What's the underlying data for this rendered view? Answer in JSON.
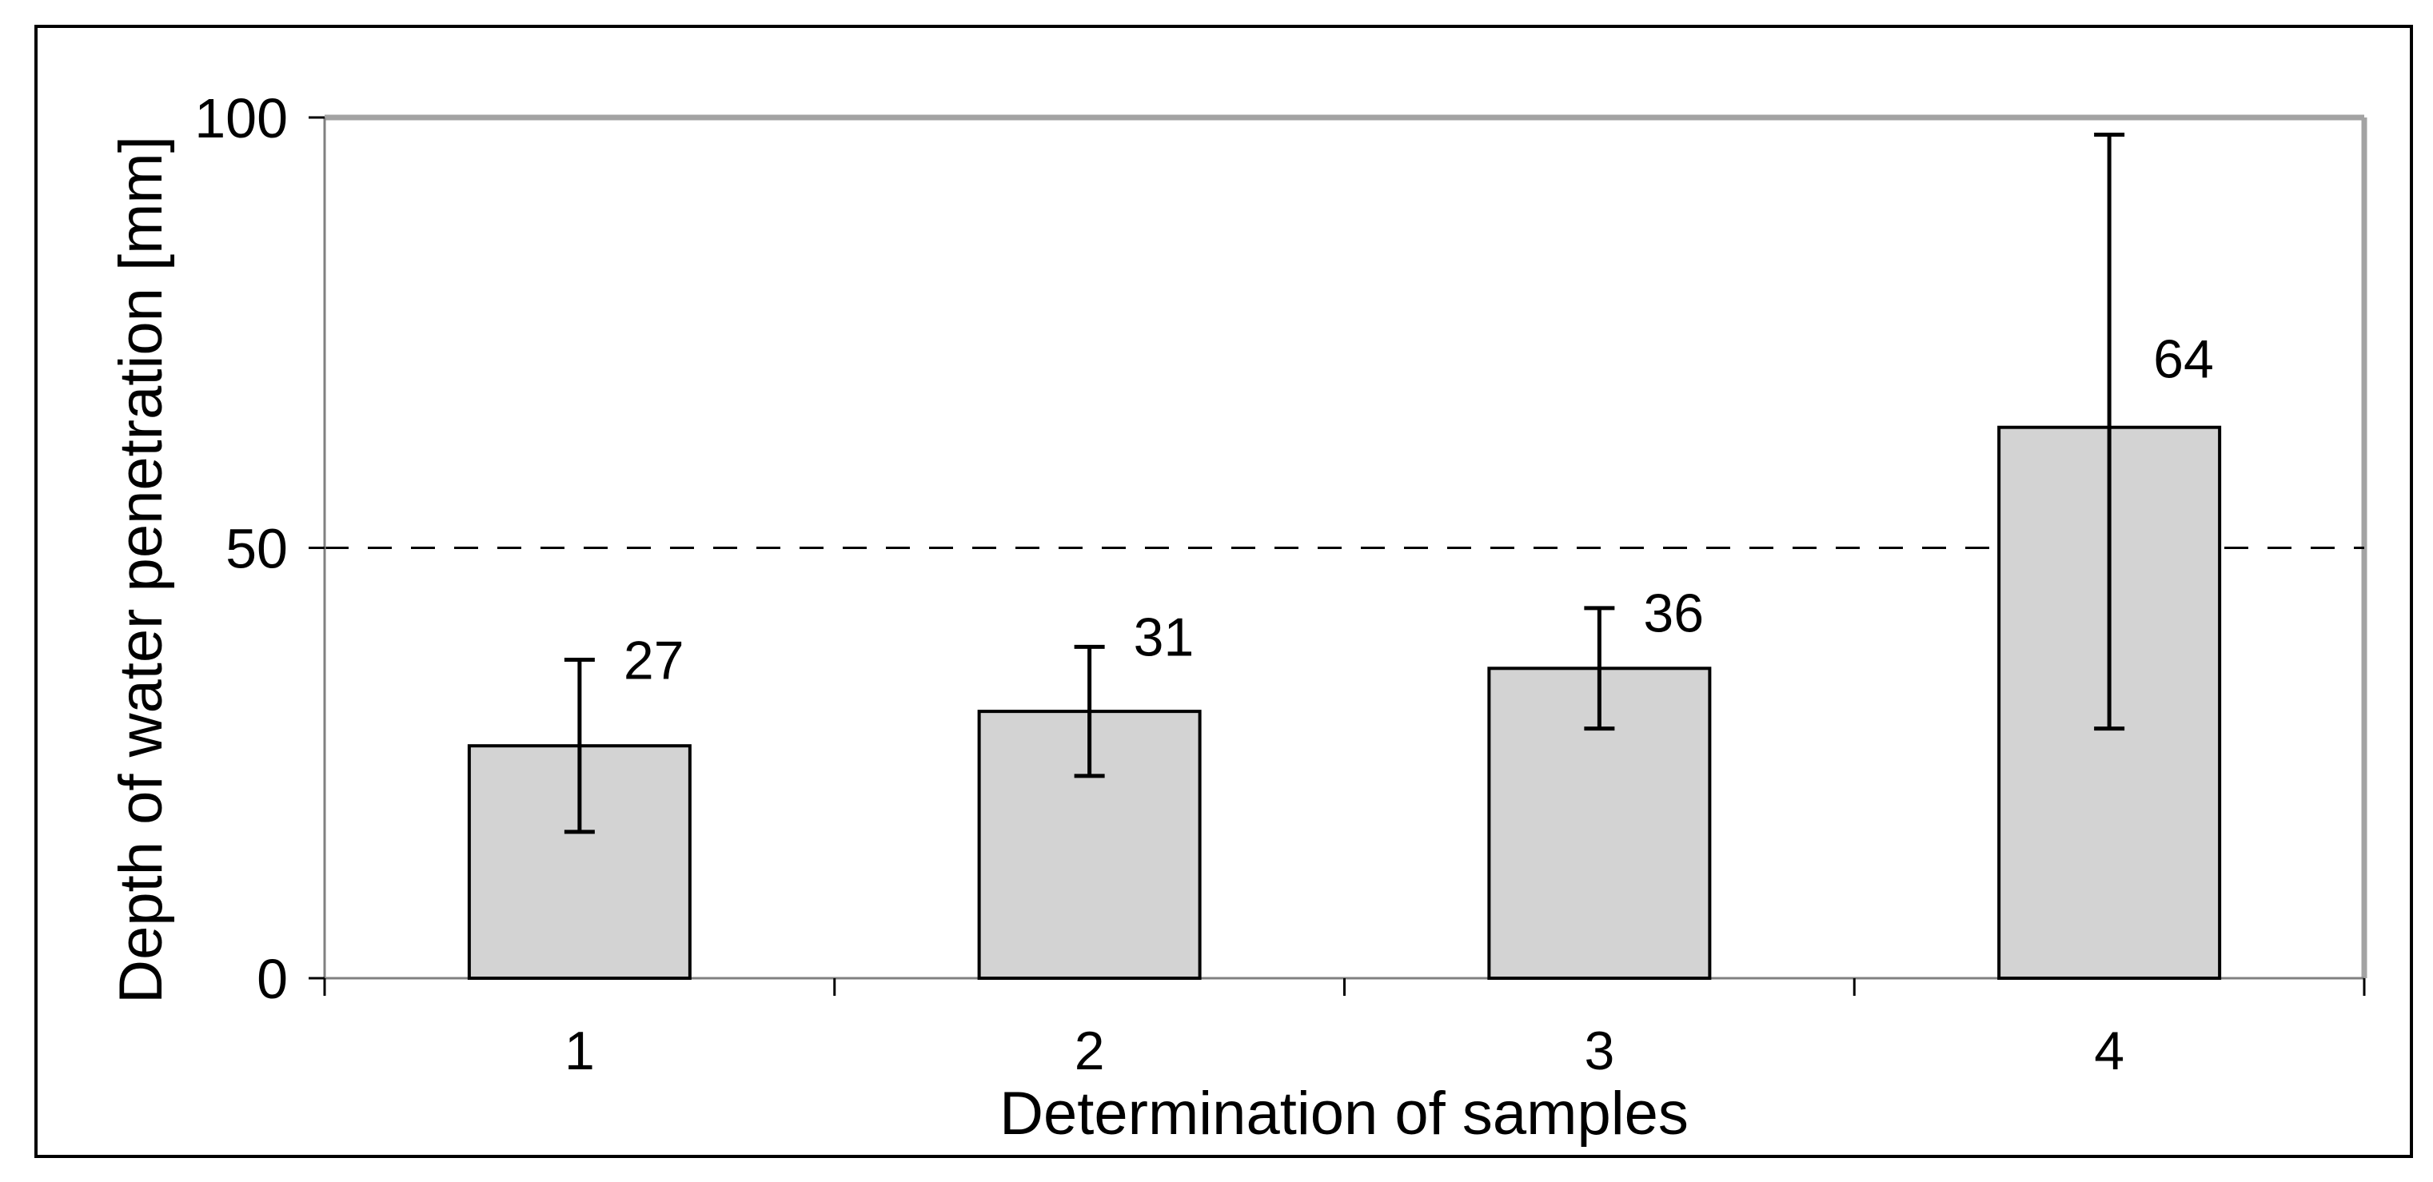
{
  "chart_data": {
    "type": "bar",
    "title": "",
    "xlabel": "Determination of samples",
    "ylabel": "Depth of water penetration [mm]",
    "categories": [
      "1",
      "2",
      "3",
      "4"
    ],
    "values": [
      27,
      31,
      36,
      64
    ],
    "data_labels": [
      "27",
      "31",
      "36",
      "64"
    ],
    "error_bars": [
      {
        "low": 17,
        "high": 37
      },
      {
        "low": 23.5,
        "high": 38.5
      },
      {
        "low": 29,
        "high": 43
      },
      {
        "low": 29,
        "high": 98
      }
    ],
    "label_anchor_y": [
      37,
      39.7,
      42.5,
      72
    ],
    "ylim": [
      0,
      100
    ],
    "yticks": [
      0,
      50,
      100
    ],
    "ytick_labels": [
      "0",
      "50",
      "100"
    ],
    "reference_line": {
      "value": 50,
      "style": "dashed"
    },
    "grid": false,
    "legend": "none"
  },
  "colors": {
    "background": "#ffffff",
    "frame": "#000000",
    "plot_border_gray": "#a3a3a3",
    "axis_gray": "#808080",
    "bar_fill": "#d3d3d3",
    "bar_border": "#000000",
    "error_bar": "#000000",
    "reference_line": "#000000",
    "text": "#000000"
  }
}
